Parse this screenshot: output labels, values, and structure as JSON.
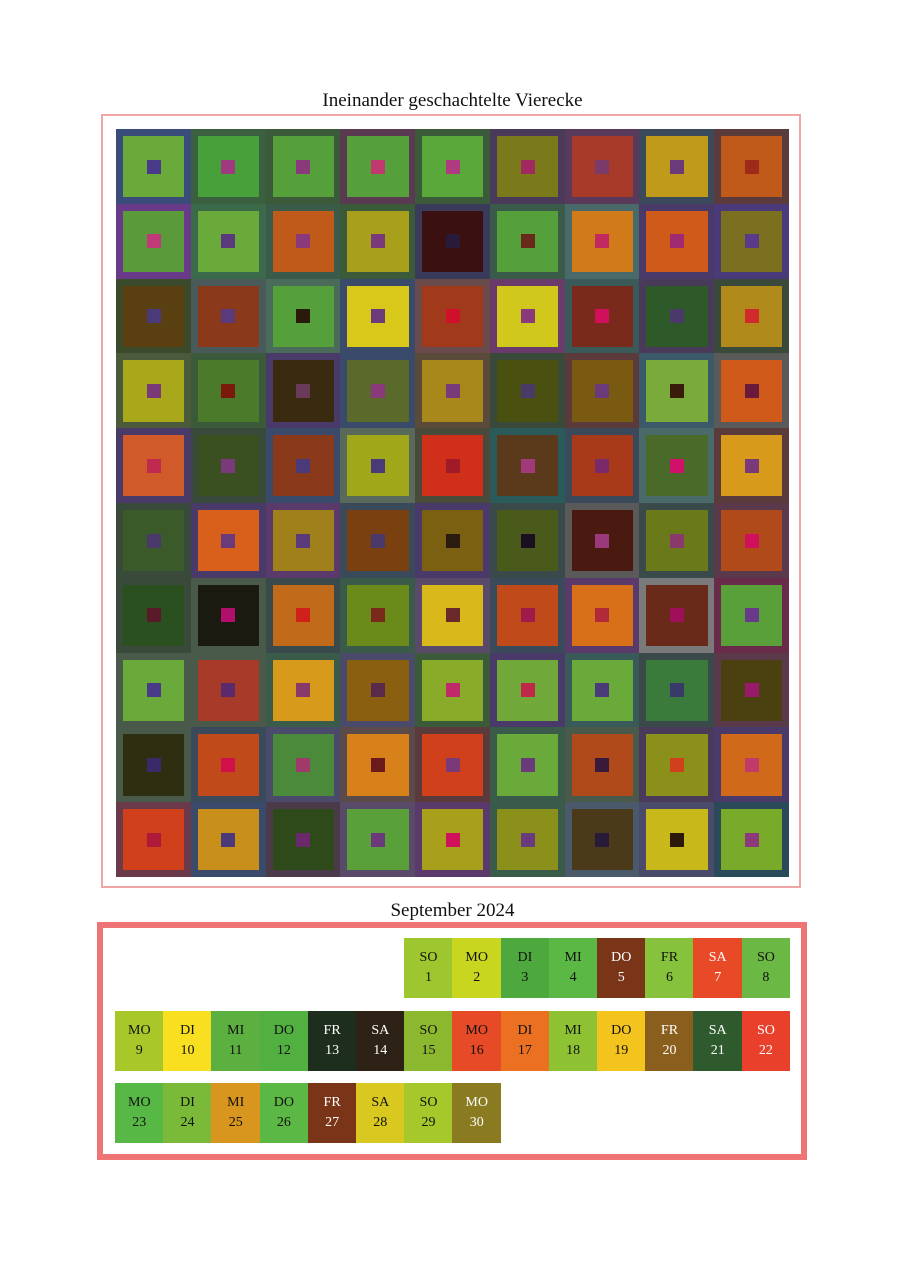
{
  "art": {
    "title": "Ineinander geschachtelte Vierecke",
    "rows": [
      [
        [
          "#3a4d7a",
          "#6aaa3a",
          "#4a3a8a"
        ],
        [
          "#3a6040",
          "#47a03a",
          "#a03a80"
        ],
        [
          "#3a5a3a",
          "#55a03a",
          "#8a3a7a"
        ],
        [
          "#5a3a50",
          "#55a03a",
          "#c03a70"
        ],
        [
          "#3a5a3a",
          "#5aa83a",
          "#b03a80"
        ],
        [
          "#4a3a5a",
          "#7a7a1a",
          "#a02a60"
        ],
        [
          "#5a3a5a",
          "#a83a2a",
          "#7a3a6a"
        ],
        [
          "#3a4a5a",
          "#c09a1a",
          "#6a3a7a"
        ],
        [
          "#5a3a3a",
          "#c05a1a",
          "#a02a1a"
        ]
      ],
      [
        [
          "#6a3a8a",
          "#5a9a3a",
          "#c03a7a"
        ],
        [
          "#3a6a4a",
          "#6aaa3a",
          "#5a3a7a"
        ],
        [
          "#3a5a4a",
          "#c05a1a",
          "#8a3a7a"
        ],
        [
          "#3a5a3a",
          "#a8a01a",
          "#7a3a7a"
        ],
        [
          "#3a3a5a",
          "#3a1010",
          "#2a1a3a"
        ],
        [
          "#3a5a4a",
          "#55a03a",
          "#6a2a1a"
        ],
        [
          "#4a6a6a",
          "#d07a1a",
          "#c02a60"
        ],
        [
          "#4a3a6a",
          "#d05a1a",
          "#a02a70"
        ],
        [
          "#4a3a7a",
          "#7a7020",
          "#5a3a8a"
        ]
      ],
      [
        [
          "#3a4a2a",
          "#5a4010",
          "#4a3a7a"
        ],
        [
          "#4a5a5a",
          "#8a3a1a",
          "#5a3a7a"
        ],
        [
          "#4a6a5a",
          "#55a03a",
          "#2a1a0a"
        ],
        [
          "#3a4a6a",
          "#d8c81a",
          "#6a3a7a"
        ],
        [
          "#6a4a4a",
          "#a03a1a",
          "#d0102a"
        ],
        [
          "#6a3a6a",
          "#d0c81a",
          "#8a3a7a"
        ],
        [
          "#3a5a5a",
          "#7a2a1a",
          "#d0105a"
        ],
        [
          "#4a3a5a",
          "#2e5a2a",
          "#4a3a6a"
        ],
        [
          "#3a4a3a",
          "#b08a1a",
          "#d02a2a"
        ]
      ],
      [
        [
          "#4a5a3a",
          "#a8a81a",
          "#7a3a7a"
        ],
        [
          "#3a5a3a",
          "#4a7a2a",
          "#7a1a0a"
        ],
        [
          "#4a3a6a",
          "#3a2a10",
          "#6a3a5a"
        ],
        [
          "#3a4a6a",
          "#5a6a2a",
          "#8a3a7a"
        ],
        [
          "#5a4a3a",
          "#a8881a",
          "#7a3a7a"
        ],
        [
          "#3a4a3a",
          "#4a5010",
          "#4a3a6a"
        ],
        [
          "#5a3a3a",
          "#7a5a10",
          "#6a3a7a"
        ],
        [
          "#3a5a6a",
          "#7aaa3a",
          "#3a1a0a"
        ],
        [
          "#5a5a5a",
          "#d05a1a",
          "#6a1a3a"
        ]
      ],
      [
        [
          "#4a3a6a",
          "#d05a2a",
          "#c02a50"
        ],
        [
          "#3a4a3a",
          "#3a5020",
          "#7a3a7a"
        ],
        [
          "#3a4a6a",
          "#8a3a1a",
          "#4a3a7a"
        ],
        [
          "#5a6a5a",
          "#a0a81a",
          "#4a3a7a"
        ],
        [
          "#4a4a3a",
          "#d0301a",
          "#a01a2a"
        ],
        [
          "#2a5a5a",
          "#5a3a1a",
          "#a03a7a"
        ],
        [
          "#3a4a5a",
          "#a83a1a",
          "#7a2a6a"
        ],
        [
          "#4a6a6a",
          "#4a6a2a",
          "#d0106a"
        ],
        [
          "#5a3a3a",
          "#d89a1a",
          "#7a3a7a"
        ]
      ],
      [
        [
          "#3a4a3a",
          "#3a5a2a",
          "#4a3a6a"
        ],
        [
          "#4a3a6a",
          "#d8601a",
          "#6a3a7a"
        ],
        [
          "#5a3a6a",
          "#a0801a",
          "#5a3a7a"
        ],
        [
          "#3a4a5a",
          "#7a4010",
          "#4a3a6a"
        ],
        [
          "#4a3a6a",
          "#7a6010",
          "#2a1a10"
        ],
        [
          "#3a4a4a",
          "#4a5a1a",
          "#1a1020"
        ],
        [
          "#5a5a5a",
          "#4a1a10",
          "#9a3a7a"
        ],
        [
          "#3a4a4a",
          "#6a7a1a",
          "#8a3a6a"
        ],
        [
          "#5a3a4a",
          "#b04a1a",
          "#d0105a"
        ]
      ],
      [
        [
          "#3a4a3a",
          "#2a5020",
          "#5a1a2a"
        ],
        [
          "#4a5a4a",
          "#1a1a10",
          "#b0106a"
        ],
        [
          "#3a4a4a",
          "#c06a1a",
          "#d0201a"
        ],
        [
          "#3a5a4a",
          "#6a8a1a",
          "#7a2a1a"
        ],
        [
          "#5a4a6a",
          "#d8b81a",
          "#6a2a2a"
        ],
        [
          "#3a4a5a",
          "#c04a1a",
          "#a01a4a"
        ],
        [
          "#5a3a6a",
          "#d8701a",
          "#b02a3a"
        ],
        [
          "#7a7a7a",
          "#6a2a1a",
          "#a0105a"
        ],
        [
          "#6a2a4a",
          "#5aa03a",
          "#6a3a8a"
        ]
      ],
      [
        [
          "#4a5a4a",
          "#6aaa3a",
          "#4a3a8a"
        ],
        [
          "#4a5a4a",
          "#a83a2a",
          "#5a2a6a"
        ],
        [
          "#3a5a4a",
          "#d89a1a",
          "#8a3a6a"
        ],
        [
          "#4a4a6a",
          "#8a6010",
          "#5a2a4a"
        ],
        [
          "#3a5a3a",
          "#8aaa2a",
          "#c02a6a"
        ],
        [
          "#4a3a6a",
          "#70a83a",
          "#c02a4a"
        ],
        [
          "#3a5a5a",
          "#6aaa3a",
          "#4a3a7a"
        ],
        [
          "#3a4a4a",
          "#3a7a3a",
          "#3a3a6a"
        ],
        [
          "#5a3a4a",
          "#4a4010",
          "#9a1a6a"
        ]
      ],
      [
        [
          "#4a5a4a",
          "#2e2e10",
          "#3a2a6a"
        ],
        [
          "#3a4a5a",
          "#c04a1a",
          "#d0104a"
        ],
        [
          "#4a4a6a",
          "#4a8a3a",
          "#a03a6a"
        ],
        [
          "#5a4a4a",
          "#d8801a",
          "#6a1a1a"
        ],
        [
          "#5a3a3a",
          "#d0401a",
          "#7a3a7a"
        ],
        [
          "#3a5a4a",
          "#6aaa3a",
          "#6a3a7a"
        ],
        [
          "#4a5a4a",
          "#b04a1a",
          "#3a1a3a"
        ],
        [
          "#4a3a5a",
          "#8a901a",
          "#d0401a"
        ],
        [
          "#4a3a6a",
          "#d06a1a",
          "#c03a6a"
        ]
      ],
      [
        [
          "#6a3a4a",
          "#d0401a",
          "#b01a3a"
        ],
        [
          "#3a4a6a",
          "#c8901a",
          "#4a3a7a"
        ],
        [
          "#4a3a4a",
          "#2e4a1a",
          "#6a2a6a"
        ],
        [
          "#5a4a6a",
          "#5aa03a",
          "#6a3a7a"
        ],
        [
          "#5a3a6a",
          "#a8a01a",
          "#d0105a"
        ],
        [
          "#3a5a4a",
          "#8a901a",
          "#6a3a7a"
        ],
        [
          "#4a5a6a",
          "#4a3a1a",
          "#2a1a3a"
        ],
        [
          "#4a4a6a",
          "#c8b81a",
          "#2a1a0a"
        ],
        [
          "#2a4a5a",
          "#7aaa2a",
          "#8a3a7a"
        ]
      ]
    ]
  },
  "calendar": {
    "title": "September 2024",
    "rows": [
      {
        "offset": 6,
        "days": [
          {
            "wd": "SO",
            "d": "1",
            "bg": "#9ec62e",
            "fg": "#111111"
          },
          {
            "wd": "MO",
            "d": "2",
            "bg": "#c8d620",
            "fg": "#111111"
          },
          {
            "wd": "DI",
            "d": "3",
            "bg": "#4da83e",
            "fg": "#111111"
          },
          {
            "wd": "MI",
            "d": "4",
            "bg": "#5cb845",
            "fg": "#111111"
          },
          {
            "wd": "DO",
            "d": "5",
            "bg": "#7a3518",
            "fg": "#ffffff"
          },
          {
            "wd": "FR",
            "d": "6",
            "bg": "#86c23c",
            "fg": "#111111"
          },
          {
            "wd": "SA",
            "d": "7",
            "bg": "#e84a28",
            "fg": "#ffffff"
          },
          {
            "wd": "SO",
            "d": "8",
            "bg": "#6cb845",
            "fg": "#111111"
          }
        ]
      },
      {
        "offset": 0,
        "days": [
          {
            "wd": "MO",
            "d": "9",
            "bg": "#a8c82a",
            "fg": "#111111"
          },
          {
            "wd": "DI",
            "d": "10",
            "bg": "#f8e020",
            "fg": "#111111"
          },
          {
            "wd": "MI",
            "d": "11",
            "bg": "#5cb040",
            "fg": "#111111"
          },
          {
            "wd": "DO",
            "d": "12",
            "bg": "#52b040",
            "fg": "#111111"
          },
          {
            "wd": "FR",
            "d": "13",
            "bg": "#1e2e1e",
            "fg": "#ffffff"
          },
          {
            "wd": "SA",
            "d": "14",
            "bg": "#2e2216",
            "fg": "#ffffff"
          },
          {
            "wd": "SO",
            "d": "15",
            "bg": "#8cb830",
            "fg": "#111111"
          },
          {
            "wd": "MO",
            "d": "16",
            "bg": "#e64a26",
            "fg": "#111111"
          },
          {
            "wd": "DI",
            "d": "17",
            "bg": "#ec7022",
            "fg": "#111111"
          },
          {
            "wd": "MI",
            "d": "18",
            "bg": "#8ec232",
            "fg": "#111111"
          },
          {
            "wd": "DO",
            "d": "19",
            "bg": "#f4c41e",
            "fg": "#111111"
          },
          {
            "wd": "FR",
            "d": "20",
            "bg": "#8a5e1c",
            "fg": "#ffffff"
          },
          {
            "wd": "SA",
            "d": "21",
            "bg": "#2e5a2e",
            "fg": "#ffffff"
          },
          {
            "wd": "SO",
            "d": "22",
            "bg": "#e8402a",
            "fg": "#ffffff"
          }
        ]
      },
      {
        "offset": 0,
        "days": [
          {
            "wd": "MO",
            "d": "23",
            "bg": "#58b845",
            "fg": "#111111"
          },
          {
            "wd": "DI",
            "d": "24",
            "bg": "#7aba38",
            "fg": "#111111"
          },
          {
            "wd": "MI",
            "d": "25",
            "bg": "#d8961e",
            "fg": "#111111"
          },
          {
            "wd": "DO",
            "d": "26",
            "bg": "#5cb845",
            "fg": "#111111"
          },
          {
            "wd": "FR",
            "d": "27",
            "bg": "#7a3418",
            "fg": "#ffffff"
          },
          {
            "wd": "SA",
            "d": "28",
            "bg": "#d8c820",
            "fg": "#111111"
          },
          {
            "wd": "SO",
            "d": "29",
            "bg": "#a6c82a",
            "fg": "#111111"
          },
          {
            "wd": "MO",
            "d": "30",
            "bg": "#8a7a20",
            "fg": "#ffffff"
          }
        ]
      }
    ]
  }
}
